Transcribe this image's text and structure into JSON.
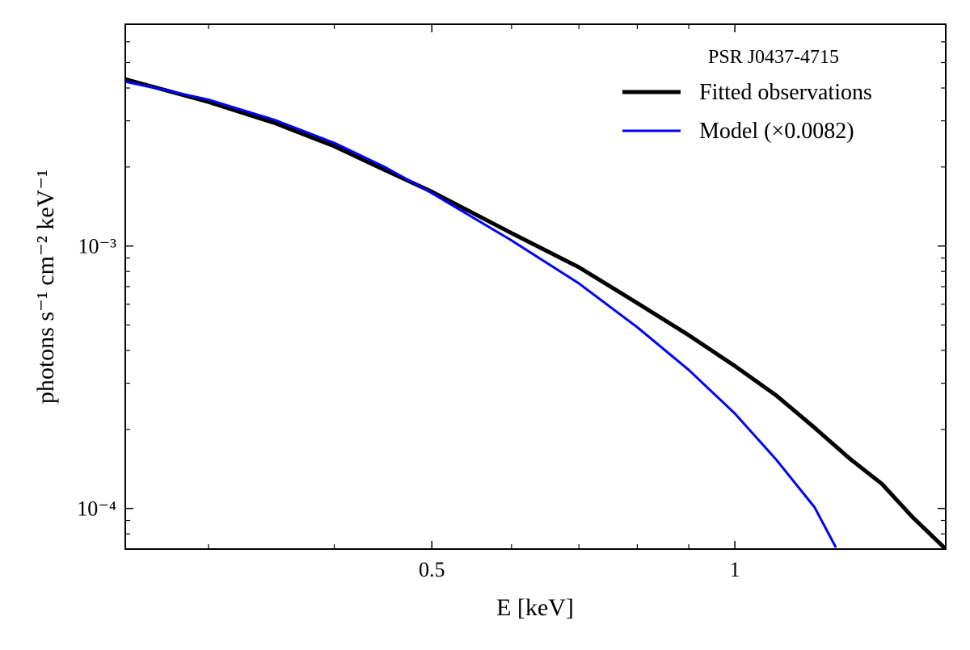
{
  "chart_data": {
    "type": "line",
    "y_label": "photons s⁻¹ cm⁻² keV⁻¹",
    "x_label": "E [keV]",
    "legend_title": "PSR J0437-4715",
    "legend": "upper right",
    "xscale": "log",
    "yscale": "log",
    "xlim": [
      0.248,
      1.62
    ],
    "ylim": [
      7e-05,
      0.007
    ],
    "xticks": [
      0.5,
      1
    ],
    "xticks_minor": [
      0.3,
      0.4,
      0.6,
      0.7,
      0.8,
      0.9
    ],
    "yticks": [
      {
        "value": 0.0001,
        "label": "10⁻⁴"
      },
      {
        "value": 0.001,
        "label": "10⁻³"
      }
    ],
    "yticks_minor": [
      8e-05,
      9e-05,
      0.0002,
      0.0003,
      0.0004,
      0.0005,
      0.0006,
      0.0007,
      0.0008,
      0.0009,
      0.002,
      0.003,
      0.004,
      0.005,
      0.006
    ],
    "series": [
      {
        "name": "Fitted observations",
        "color": "#000000",
        "width": 5,
        "x": [
          0.248,
          0.3,
          0.35,
          0.4,
          0.45,
          0.5,
          0.6,
          0.7,
          0.8,
          0.9,
          1.0,
          1.1,
          1.2,
          1.3,
          1.4,
          1.5,
          1.62
        ],
        "values": [
          0.00432,
          0.00354,
          0.00293,
          0.0024,
          0.00194,
          0.00161,
          0.00112,
          0.00083,
          0.000606,
          0.000457,
          0.000349,
          0.000269,
          0.000203,
          0.000155,
          0.000124,
          9.3e-05,
          7e-05
        ]
      },
      {
        "name": "Model (×0.0082)",
        "color": "#0000ff",
        "width": 3,
        "x": [
          0.248,
          0.3,
          0.35,
          0.4,
          0.45,
          0.5,
          0.6,
          0.7,
          0.8,
          0.9,
          1.0,
          1.1,
          1.2,
          1.26
        ],
        "values": [
          0.00423,
          0.00361,
          0.00301,
          0.00247,
          0.00199,
          0.00159,
          0.00105,
          0.00072,
          0.00049,
          0.000337,
          0.00023,
          0.000153,
          0.000101,
          7.1e-05
        ]
      }
    ]
  }
}
